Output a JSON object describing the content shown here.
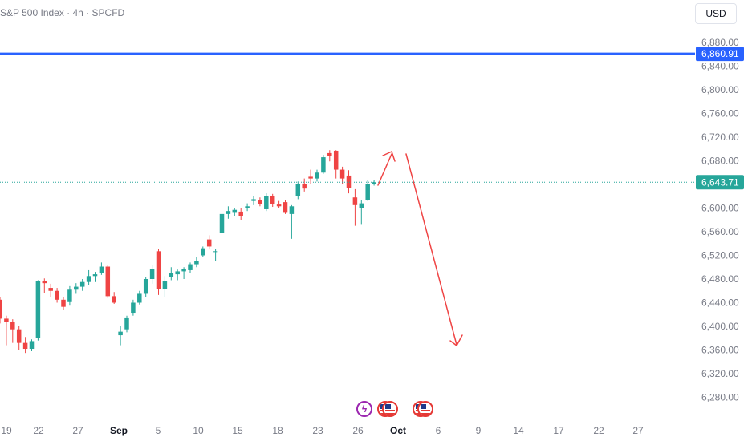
{
  "header": {
    "title": "S&P 500 Index · 4h · SPCFD",
    "currency": "USD"
  },
  "colors": {
    "up": "#26a69a",
    "down": "#ef4444",
    "resistance": "#2962ff",
    "last_price": "#26a69a",
    "arrow": "#ef4444",
    "axis_text": "#787b86"
  },
  "events": [
    "earnings-bolt-icon",
    "us-flag-icon",
    "us-flag-icon"
  ],
  "chart_data": {
    "type": "candlestick",
    "title": "S&P 500 Index · 4h · SPCFD",
    "y_ticks": [
      "6,880.00",
      "6,840.00",
      "6,800.00",
      "6,760.00",
      "6,720.00",
      "6,680.00",
      "6,640.00",
      "6,600.00",
      "6,560.00",
      "6,520.00",
      "6,480.00",
      "6,440.00",
      "6,400.00",
      "6,360.00",
      "6,320.00",
      "6,280.00"
    ],
    "y_tick_values": [
      6880,
      6840,
      6800,
      6760,
      6720,
      6680,
      6640,
      6600,
      6560,
      6520,
      6480,
      6440,
      6400,
      6360,
      6320,
      6280
    ],
    "x_ticks": [
      "19",
      "22",
      "27",
      "Sep",
      "5",
      "10",
      "15",
      "18",
      "23",
      "26",
      "Oct",
      "6",
      "9",
      "14",
      "17",
      "22",
      "27"
    ],
    "ylim": [
      6244,
      6900
    ],
    "resistance_level": {
      "label": "6,860.91",
      "value": 6860.91
    },
    "last_price": {
      "label": "6,643.71",
      "value": 6643.71
    },
    "candles": [
      [
        6445,
        6450,
        6405,
        6413
      ],
      [
        6413,
        6418,
        6368,
        6408
      ],
      [
        6408,
        6412,
        6372,
        6395
      ],
      [
        6395,
        6400,
        6360,
        6372
      ],
      [
        6372,
        6382,
        6355,
        6362
      ],
      [
        6362,
        6378,
        6358,
        6375
      ],
      [
        6380,
        6478,
        6376,
        6476
      ],
      [
        6476,
        6481,
        6456,
        6473
      ],
      [
        6465,
        6472,
        6450,
        6460
      ],
      [
        6460,
        6465,
        6440,
        6445
      ],
      [
        6445,
        6450,
        6428,
        6433
      ],
      [
        6441,
        6468,
        6435,
        6462
      ],
      [
        6462,
        6473,
        6455,
        6467
      ],
      [
        6467,
        6480,
        6460,
        6475
      ],
      [
        6475,
        6495,
        6470,
        6485
      ],
      [
        6485,
        6492,
        6475,
        6488
      ],
      [
        6490,
        6508,
        6487,
        6501
      ],
      [
        6501,
        6503,
        6448,
        6451
      ],
      [
        6451,
        6458,
        6438,
        6440
      ],
      [
        6385,
        6400,
        6368,
        6391
      ],
      [
        6395,
        6418,
        6390,
        6415
      ],
      [
        6423,
        6445,
        6418,
        6440
      ],
      [
        6440,
        6460,
        6437,
        6455
      ],
      [
        6455,
        6483,
        6450,
        6480
      ],
      [
        6480,
        6503,
        6472,
        6497
      ],
      [
        6527,
        6531,
        6453,
        6463
      ],
      [
        6463,
        6485,
        6450,
        6477
      ],
      [
        6484,
        6500,
        6478,
        6490
      ],
      [
        6488,
        6496,
        6478,
        6493
      ],
      [
        6493,
        6500,
        6480,
        6497
      ],
      [
        6495,
        6508,
        6490,
        6505
      ],
      [
        6505,
        6517,
        6500,
        6511
      ],
      [
        6520,
        6535,
        6518,
        6532
      ],
      [
        6547,
        6554,
        6530,
        6535
      ],
      [
        6526,
        6531,
        6510,
        6527
      ],
      [
        6558,
        6600,
        6550,
        6590
      ],
      [
        6590,
        6603,
        6582,
        6595
      ],
      [
        6592,
        6600,
        6586,
        6597
      ],
      [
        6594,
        6600,
        6580,
        6587
      ],
      [
        6600,
        6608,
        6595,
        6603
      ],
      [
        6612,
        6620,
        6605,
        6615
      ],
      [
        6613,
        6618,
        6603,
        6607
      ],
      [
        6598,
        6625,
        6595,
        6620
      ],
      [
        6620,
        6624,
        6602,
        6607
      ],
      [
        6606,
        6612,
        6600,
        6603
      ],
      [
        6610,
        6614,
        6590,
        6592
      ],
      [
        6590,
        6605,
        6548,
        6603
      ],
      [
        6620,
        6645,
        6615,
        6640
      ],
      [
        6640,
        6650,
        6628,
        6633
      ],
      [
        6653,
        6665,
        6640,
        6650
      ],
      [
        6650,
        6665,
        6645,
        6660
      ],
      [
        6660,
        6690,
        6658,
        6686
      ],
      [
        6693,
        6698,
        6679,
        6688
      ],
      [
        6697,
        6698,
        6650,
        6665
      ],
      [
        6665,
        6670,
        6640,
        6650
      ],
      [
        6655,
        6664,
        6625,
        6634
      ],
      [
        6618,
        6632,
        6570,
        6605
      ],
      [
        6600,
        6613,
        6573,
        6608
      ],
      [
        6613,
        6648,
        6612,
        6640
      ],
      [
        6641,
        6647,
        6638,
        6643.71
      ]
    ],
    "annotation": "arrow up to ~6,706 then down to ~6,368 (bearish projection)"
  }
}
